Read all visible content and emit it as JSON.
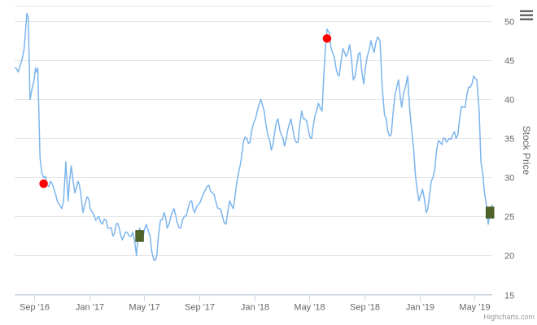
{
  "chart_data": {
    "type": "line",
    "title": "",
    "xlabel": "",
    "ylabel": "Stock Price",
    "ylim": [
      15,
      52
    ],
    "yticks": [
      15,
      20,
      25,
      30,
      35,
      40,
      45,
      50
    ],
    "xlim": [
      "2016-07-20",
      "2019-06-10"
    ],
    "xticks": [
      {
        "date": "2016-09-01",
        "label": "Sep '16"
      },
      {
        "date": "2017-01-01",
        "label": "Jan '17"
      },
      {
        "date": "2017-05-01",
        "label": "May '17"
      },
      {
        "date": "2017-09-01",
        "label": "Sep '17"
      },
      {
        "date": "2018-01-01",
        "label": "Jan '18"
      },
      {
        "date": "2018-05-01",
        "label": "May '18"
      },
      {
        "date": "2018-09-01",
        "label": "Sep '18"
      },
      {
        "date": "2019-01-01",
        "label": "Jan '19"
      },
      {
        "date": "2019-05-01",
        "label": "May '19"
      }
    ],
    "grid": true,
    "line_color": "#7cb5ec",
    "series": [
      {
        "x": [
          "2016-07-20",
          "2016-07-28",
          "2016-08-05",
          "2016-08-10",
          "2016-08-14",
          "2016-08-16",
          "2016-08-19",
          "2016-08-23",
          "2016-08-28",
          "2016-09-01",
          "2016-09-04",
          "2016-09-06",
          "2016-09-09",
          "2016-09-14",
          "2016-09-22",
          "2016-09-30",
          "2016-10-07",
          "2016-10-15",
          "2016-10-22",
          "2016-10-27",
          "2016-11-01",
          "2016-11-05",
          "2016-11-10",
          "2016-11-15",
          "2016-11-22",
          "2016-11-30",
          "2016-12-07",
          "2016-12-13",
          "2016-12-18",
          "2016-12-22",
          "2016-12-27",
          "2017-01-03",
          "2017-01-08",
          "2017-01-15",
          "2017-01-22",
          "2017-01-30",
          "2017-02-07",
          "2017-02-15",
          "2017-02-22",
          "2017-03-01",
          "2017-03-08",
          "2017-03-15",
          "2017-03-22",
          "2017-03-30",
          "2017-04-07",
          "2017-04-15",
          "2017-04-18",
          "2017-04-22",
          "2017-04-30",
          "2017-05-07",
          "2017-05-15",
          "2017-05-19",
          "2017-05-23",
          "2017-05-30",
          "2017-06-07",
          "2017-06-15",
          "2017-06-22",
          "2017-06-30",
          "2017-07-07",
          "2017-07-15",
          "2017-07-22",
          "2017-07-30",
          "2017-08-07",
          "2017-08-15",
          "2017-08-22",
          "2017-08-30",
          "2017-09-07",
          "2017-09-15",
          "2017-09-22",
          "2017-09-30",
          "2017-10-07",
          "2017-10-15",
          "2017-10-22",
          "2017-10-30",
          "2017-11-07",
          "2017-11-15",
          "2017-11-22",
          "2017-11-30",
          "2017-12-07",
          "2017-12-15",
          "2017-12-22",
          "2017-12-30",
          "2018-01-07",
          "2018-01-15",
          "2018-01-22",
          "2018-01-30",
          "2018-02-07",
          "2018-02-15",
          "2018-02-22",
          "2018-03-01",
          "2018-03-08",
          "2018-03-15",
          "2018-03-22",
          "2018-03-30",
          "2018-04-07",
          "2018-04-15",
          "2018-04-22",
          "2018-04-30",
          "2018-05-07",
          "2018-05-15",
          "2018-05-22",
          "2018-05-30",
          "2018-06-07",
          "2018-06-10",
          "2018-06-15",
          "2018-06-22",
          "2018-06-30",
          "2018-07-07",
          "2018-07-15",
          "2018-07-22",
          "2018-07-30",
          "2018-08-07",
          "2018-08-15",
          "2018-08-22",
          "2018-08-30",
          "2018-09-07",
          "2018-09-15",
          "2018-09-22",
          "2018-09-30",
          "2018-10-05",
          "2018-10-10",
          "2018-10-15",
          "2018-10-22",
          "2018-10-30",
          "2018-11-07",
          "2018-11-15",
          "2018-11-22",
          "2018-11-30",
          "2018-12-05",
          "2018-12-10",
          "2018-12-15",
          "2018-12-22",
          "2018-12-30",
          "2019-01-07",
          "2019-01-15",
          "2019-01-22",
          "2019-01-30",
          "2019-02-07",
          "2019-02-15",
          "2019-02-22",
          "2019-03-01",
          "2019-03-08",
          "2019-03-15",
          "2019-03-22",
          "2019-03-30",
          "2019-04-07",
          "2019-04-15",
          "2019-04-22",
          "2019-04-30",
          "2019-05-07",
          "2019-05-12",
          "2019-05-16",
          "2019-05-20",
          "2019-05-24",
          "2019-05-28",
          "2019-06-01",
          "2019-06-05",
          "2019-06-10"
        ],
        "y": [
          44.0,
          43.5,
          45.0,
          46.5,
          49.5,
          51.0,
          50.5,
          40.0,
          41.5,
          42.5,
          44.0,
          43.5,
          44.0,
          32.5,
          30.0,
          29.0,
          29.5,
          28.5,
          27.0,
          26.5,
          26.0,
          27.0,
          32.0,
          27.0,
          31.5,
          28.0,
          29.5,
          28.0,
          25.5,
          26.5,
          27.5,
          26.0,
          25.5,
          24.5,
          25.0,
          24.0,
          24.5,
          23.5,
          22.5,
          24.0,
          23.5,
          22.0,
          23.0,
          22.5,
          23.0,
          20.0,
          22.0,
          23.5,
          22.5,
          24.0,
          22.5,
          20.5,
          19.5,
          20.0,
          24.5,
          25.5,
          23.5,
          25.0,
          26.0,
          24.0,
          23.5,
          25.0,
          26.0,
          27.0,
          25.5,
          26.5,
          27.5,
          28.5,
          29.0,
          28.0,
          27.0,
          26.0,
          25.0,
          24.0,
          27.0,
          26.0,
          29.0,
          31.5,
          34.5,
          35.0,
          34.5,
          37.0,
          38.5,
          40.0,
          38.5,
          35.5,
          33.5,
          36.0,
          37.5,
          35.5,
          34.0,
          36.0,
          37.5,
          35.0,
          34.5,
          38.5,
          37.5,
          36.0,
          35.0,
          38.0,
          39.5,
          38.5,
          47.0,
          49.0,
          48.5,
          46.0,
          44.0,
          43.0,
          46.5,
          45.5,
          47.0,
          42.5,
          44.5,
          46.0,
          42.0,
          45.5,
          47.5,
          46.0,
          48.0,
          47.5,
          41.5,
          38.0,
          36.0,
          35.5,
          40.5,
          42.5,
          39.0,
          41.5,
          43.0,
          38.5,
          35.5,
          30.5,
          27.0,
          28.5,
          25.5,
          27.5,
          30.0,
          33.5,
          34.5,
          35.0,
          34.5,
          35.0,
          35.5,
          35.0,
          37.5,
          39.0,
          40.5,
          41.5,
          43.0,
          42.5,
          38.5,
          32.0,
          30.5,
          28.0,
          26.5,
          24.0,
          25.5,
          26.5
        ],
        "markers": [
          {
            "date": "2016-09-22",
            "value": 29.2,
            "kind": "dividend",
            "color": "#ff0000"
          },
          {
            "date": "2017-04-22",
            "value": 22.5,
            "kind": "split",
            "color": "#4f6228"
          },
          {
            "date": "2018-06-10",
            "value": 47.8,
            "kind": "dividend",
            "color": "#ff0000"
          },
          {
            "date": "2019-06-05",
            "value": 25.5,
            "kind": "split",
            "color": "#4f6228"
          }
        ]
      }
    ]
  },
  "credits": "Highcharts.com",
  "menu_icon": "hamburger-menu-icon"
}
